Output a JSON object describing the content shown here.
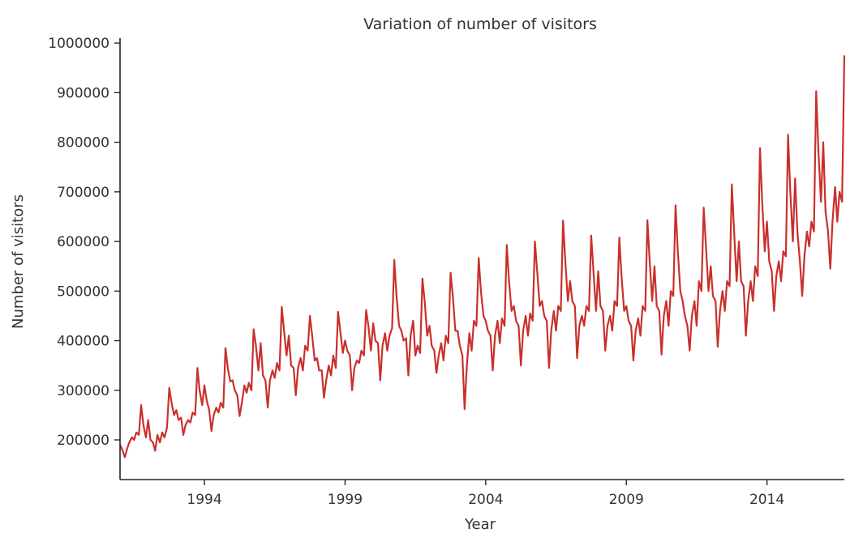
{
  "chart_data": {
    "type": "line",
    "title": "Variation of number of visitors",
    "xlabel": "Year",
    "ylabel": "Number of visitors",
    "xlim": [
      1991.0,
      2016.75
    ],
    "ylim": [
      120000,
      1010000
    ],
    "x_ticks": [
      1994,
      1999,
      2004,
      2009,
      2014
    ],
    "x_tick_labels": [
      "1994",
      "1999",
      "2004",
      "2009",
      "2014"
    ],
    "y_ticks": [
      200000,
      300000,
      400000,
      500000,
      600000,
      700000,
      800000,
      900000,
      1000000
    ],
    "y_tick_labels": [
      "200000",
      "300000",
      "400000",
      "500000",
      "600000",
      "700000",
      "800000",
      "900000",
      "1000000"
    ],
    "grid": false,
    "color": "#c9302c",
    "series": [
      {
        "x": [
          1991.0,
          1991.08,
          1991.17,
          1991.25,
          1991.33,
          1991.42,
          1991.5,
          1991.58,
          1991.67,
          1991.75,
          1991.83,
          1991.92,
          1992.0,
          1992.08,
          1992.17,
          1992.25,
          1992.33,
          1992.42,
          1992.5,
          1992.58,
          1992.67,
          1992.75,
          1992.83,
          1992.92,
          1993.0,
          1993.08,
          1993.17,
          1993.25,
          1993.33,
          1993.42,
          1993.5,
          1993.58,
          1993.67,
          1993.75,
          1993.83,
          1993.92,
          1994.0,
          1994.08,
          1994.17,
          1994.25,
          1994.33,
          1994.42,
          1994.5,
          1994.58,
          1994.67,
          1994.75,
          1994.83,
          1994.92,
          1995.0,
          1995.08,
          1995.17,
          1995.25,
          1995.33,
          1995.42,
          1995.5,
          1995.58,
          1995.67,
          1995.75,
          1995.83,
          1995.92,
          1996.0,
          1996.08,
          1996.17,
          1996.25,
          1996.33,
          1996.42,
          1996.5,
          1996.58,
          1996.67,
          1996.75,
          1996.83,
          1996.92,
          1997.0,
          1997.08,
          1997.17,
          1997.25,
          1997.33,
          1997.42,
          1997.5,
          1997.58,
          1997.67,
          1997.75,
          1997.83,
          1997.92,
          1998.0,
          1998.08,
          1998.17,
          1998.25,
          1998.33,
          1998.42,
          1998.5,
          1998.58,
          1998.67,
          1998.75,
          1998.83,
          1998.92,
          1999.0,
          1999.08,
          1999.17,
          1999.25,
          1999.33,
          1999.42,
          1999.5,
          1999.58,
          1999.67,
          1999.75,
          1999.83,
          1999.92,
          2000.0,
          2000.08,
          2000.17,
          2000.25,
          2000.33,
          2000.42,
          2000.5,
          2000.58,
          2000.67,
          2000.75,
          2000.83,
          2000.92,
          2001.0,
          2001.08,
          2001.17,
          2001.25,
          2001.33,
          2001.42,
          2001.5,
          2001.58,
          2001.67,
          2001.75,
          2001.83,
          2001.92,
          2002.0,
          2002.08,
          2002.17,
          2002.25,
          2002.33,
          2002.42,
          2002.5,
          2002.58,
          2002.67,
          2002.75,
          2002.83,
          2002.92,
          2003.0,
          2003.08,
          2003.17,
          2003.25,
          2003.33,
          2003.42,
          2003.5,
          2003.58,
          2003.67,
          2003.75,
          2003.83,
          2003.92,
          2004.0,
          2004.08,
          2004.17,
          2004.25,
          2004.33,
          2004.42,
          2004.5,
          2004.58,
          2004.67,
          2004.75,
          2004.83,
          2004.92,
          2005.0,
          2005.08,
          2005.17,
          2005.25,
          2005.33,
          2005.42,
          2005.5,
          2005.58,
          2005.67,
          2005.75,
          2005.83,
          2005.92,
          2006.0,
          2006.08,
          2006.17,
          2006.25,
          2006.33,
          2006.42,
          2006.5,
          2006.58,
          2006.67,
          2006.75,
          2006.83,
          2006.92,
          2007.0,
          2007.08,
          2007.17,
          2007.25,
          2007.33,
          2007.42,
          2007.5,
          2007.58,
          2007.67,
          2007.75,
          2007.83,
          2007.92,
          2008.0,
          2008.08,
          2008.17,
          2008.25,
          2008.33,
          2008.42,
          2008.5,
          2008.58,
          2008.67,
          2008.75,
          2008.83,
          2008.92,
          2009.0,
          2009.08,
          2009.17,
          2009.25,
          2009.33,
          2009.42,
          2009.5,
          2009.58,
          2009.67,
          2009.75,
          2009.83,
          2009.92,
          2010.0,
          2010.08,
          2010.17,
          2010.25,
          2010.33,
          2010.42,
          2010.5,
          2010.58,
          2010.67,
          2010.75,
          2010.83,
          2010.92,
          2011.0,
          2011.08,
          2011.17,
          2011.25,
          2011.33,
          2011.42,
          2011.5,
          2011.58,
          2011.67,
          2011.75,
          2011.83,
          2011.92,
          2012.0,
          2012.08,
          2012.17,
          2012.25,
          2012.33,
          2012.42,
          2012.5,
          2012.58,
          2012.67,
          2012.75,
          2012.83,
          2012.92,
          2013.0,
          2013.08,
          2013.17,
          2013.25,
          2013.33,
          2013.42,
          2013.5,
          2013.58,
          2013.67,
          2013.75,
          2013.83,
          2013.92,
          2014.0,
          2014.08,
          2014.17,
          2014.25,
          2014.33,
          2014.42,
          2014.5,
          2014.58,
          2014.67,
          2014.75,
          2014.83,
          2014.92,
          2015.0,
          2015.08,
          2015.17,
          2015.25,
          2015.33,
          2015.42,
          2015.5,
          2015.58,
          2015.67,
          2015.75,
          2015.83,
          2015.92,
          2016.0,
          2016.08,
          2016.17,
          2016.25,
          2016.33,
          2016.42,
          2016.5,
          2016.58,
          2016.67,
          2016.75
        ],
        "values": [
          190000,
          180000,
          165000,
          182000,
          195000,
          205000,
          200000,
          215000,
          210000,
          270000,
          230000,
          205000,
          240000,
          200000,
          195000,
          178000,
          210000,
          195000,
          215000,
          205000,
          225000,
          305000,
          275000,
          250000,
          260000,
          240000,
          245000,
          210000,
          230000,
          240000,
          235000,
          255000,
          250000,
          345000,
          300000,
          270000,
          310000,
          280000,
          260000,
          218000,
          250000,
          265000,
          255000,
          275000,
          265000,
          385000,
          345000,
          318000,
          320000,
          300000,
          290000,
          248000,
          275000,
          310000,
          295000,
          315000,
          300000,
          423000,
          390000,
          340000,
          395000,
          330000,
          320000,
          265000,
          320000,
          340000,
          325000,
          355000,
          340000,
          468000,
          420000,
          370000,
          410000,
          350000,
          345000,
          290000,
          345000,
          365000,
          340000,
          390000,
          380000,
          450000,
          410000,
          360000,
          365000,
          340000,
          340000,
          285000,
          320000,
          350000,
          330000,
          370000,
          345000,
          458000,
          420000,
          375000,
          400000,
          380000,
          370000,
          300000,
          345000,
          360000,
          355000,
          380000,
          370000,
          462000,
          430000,
          380000,
          435000,
          400000,
          395000,
          320000,
          390000,
          415000,
          380000,
          410000,
          425000,
          563000,
          490000,
          430000,
          420000,
          400000,
          405000,
          330000,
          410000,
          440000,
          370000,
          390000,
          375000,
          525000,
          480000,
          410000,
          430000,
          390000,
          380000,
          335000,
          370000,
          395000,
          360000,
          410000,
          395000,
          537000,
          490000,
          420000,
          420000,
          390000,
          370000,
          262000,
          350000,
          415000,
          380000,
          440000,
          430000,
          567000,
          500000,
          450000,
          440000,
          420000,
          410000,
          340000,
          410000,
          440000,
          395000,
          445000,
          430000,
          593000,
          520000,
          460000,
          470000,
          440000,
          430000,
          350000,
          420000,
          450000,
          410000,
          455000,
          440000,
          600000,
          540000,
          470000,
          480000,
          450000,
          440000,
          345000,
          420000,
          460000,
          420000,
          470000,
          460000,
          642000,
          560000,
          480000,
          520000,
          480000,
          470000,
          365000,
          430000,
          450000,
          430000,
          470000,
          460000,
          612000,
          540000,
          460000,
          540000,
          470000,
          460000,
          380000,
          430000,
          450000,
          420000,
          480000,
          470000,
          608000,
          530000,
          460000,
          470000,
          440000,
          430000,
          360000,
          420000,
          445000,
          410000,
          470000,
          460000,
          643000,
          560000,
          480000,
          550000,
          470000,
          460000,
          372000,
          450000,
          480000,
          430000,
          500000,
          490000,
          673000,
          580000,
          500000,
          480000,
          450000,
          430000,
          380000,
          450000,
          480000,
          430000,
          520000,
          500000,
          668000,
          590000,
          500000,
          550000,
          490000,
          480000,
          388000,
          460000,
          500000,
          460000,
          520000,
          510000,
          715000,
          620000,
          520000,
          600000,
          520000,
          510000,
          410000,
          480000,
          520000,
          480000,
          550000,
          530000,
          788000,
          680000,
          580000,
          640000,
          560000,
          540000,
          460000,
          530000,
          560000,
          520000,
          580000,
          570000,
          815000,
          700000,
          600000,
          727000,
          620000,
          560000,
          490000,
          570000,
          620000,
          590000,
          640000,
          620000,
          903000,
          780000,
          680000,
          800000,
          660000,
          620000,
          545000,
          640000,
          710000,
          640000,
          700000,
          680000,
          975000
        ]
      }
    ]
  }
}
